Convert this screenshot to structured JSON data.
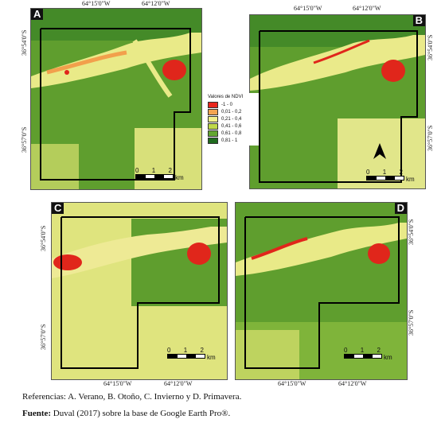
{
  "panels": [
    {
      "label": "A",
      "top_lon": [
        "64°15'0\"W",
        "64°12'0\"W"
      ],
      "bottom_lon": [],
      "left_lat": [
        "36°54'0\"S",
        "36°57'0\"S"
      ],
      "right_lat": []
    },
    {
      "label": "B",
      "top_lon": [
        "64°15'0\"W",
        "64°12'0\"W"
      ],
      "bottom_lon": [],
      "left_lat": [],
      "right_lat": [
        "36°54'0\"S",
        "36°57'0\"S"
      ]
    },
    {
      "label": "C",
      "top_lon": [],
      "bottom_lon": [
        "64°15'0\"W",
        "64°12'0\"W"
      ],
      "left_lat": [
        "36°54'0\"S",
        "36°57'0\"S"
      ],
      "right_lat": []
    },
    {
      "label": "D",
      "top_lon": [],
      "bottom_lon": [
        "64°15'0\"W",
        "64°12'0\"W"
      ],
      "left_lat": [],
      "right_lat": [
        "36°54'0\"S",
        "36°57'0\"S"
      ]
    }
  ],
  "legend": {
    "title": "Valores de NDVI",
    "items": [
      {
        "label": "-1 - 0",
        "color": "#e8261c"
      },
      {
        "label": "0,01 - 0,2",
        "color": "#f3a552"
      },
      {
        "label": "0,21 - 0,4",
        "color": "#f1ef8c"
      },
      {
        "label": "0,41 - 0,6",
        "color": "#bfd94a"
      },
      {
        "label": "0,61 - 0,8",
        "color": "#63a630"
      },
      {
        "label": "0,81 - 1",
        "color": "#1f6b1e"
      }
    ]
  },
  "scale": {
    "ticks": [
      "0",
      "1",
      "2"
    ],
    "unit": "km"
  },
  "caption": {
    "references": "Referencias: A. Verano, B. Otoño, C. Invierno y D. Primavera.",
    "source_label": "Fuente:",
    "source_text": " Duval (2017) sobre la base de Google Earth Pro®."
  }
}
